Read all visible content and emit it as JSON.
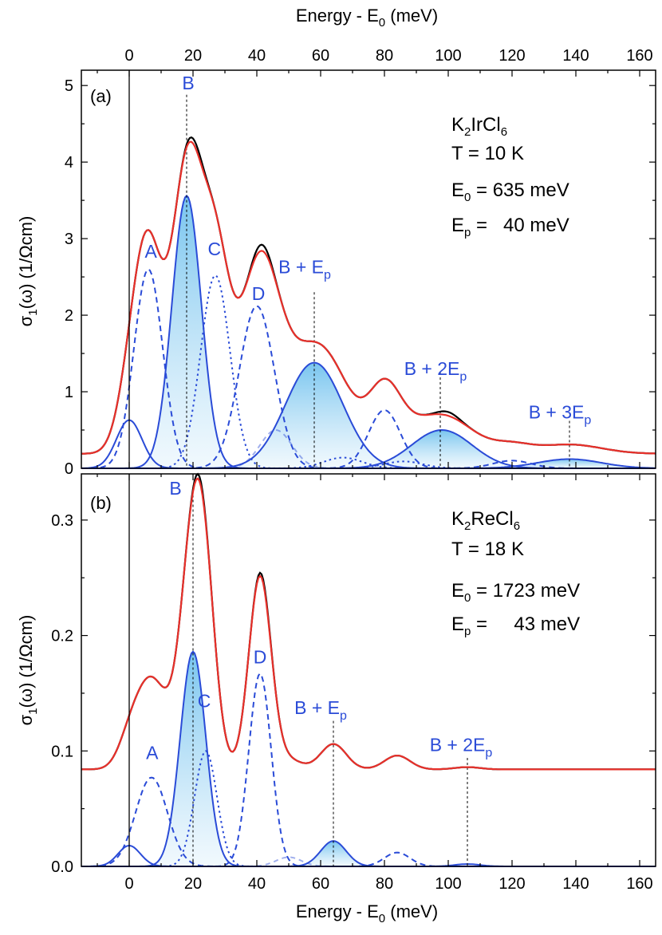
{
  "colors": {
    "data": "#000000",
    "fit": "#e8302a",
    "peak": "#2a4bd7",
    "fill_top": "#4fb3ea",
    "fill_bottom": "#e4f3fc"
  },
  "xaxis": {
    "title_main": "Energy - E",
    "title_sub": "0",
    "title_unit": " (meV)",
    "range": [
      -15,
      165
    ],
    "ticks": [
      0,
      20,
      40,
      60,
      80,
      100,
      120,
      140,
      160
    ],
    "tick_labels": [
      "0",
      "20",
      "40",
      "60",
      "80",
      "100",
      "120",
      "140",
      "160"
    ]
  },
  "ylabel": {
    "main": "σ",
    "sub": "1",
    "rest": "(ω) (1/Ωcm)"
  },
  "chart_data": [
    {
      "type": "line",
      "panel": "(a)",
      "title": "K2IrCl6",
      "info": {
        "formula_parts": [
          "K",
          "2",
          "IrCl",
          "6"
        ],
        "temperature": "T = 10 K",
        "e0_prefix": "E",
        "e0_sub": "0",
        "e0_text": " = 635 meV",
        "ep_prefix": "E",
        "ep_sub": "p",
        "ep_text": " =   40 meV"
      },
      "xlim": [
        -15,
        165
      ],
      "ylim": [
        0,
        5.2
      ],
      "yticks": [
        0,
        1,
        2,
        3,
        4,
        5
      ],
      "ytick_labels": [
        "0",
        "1",
        "2",
        "3",
        "4",
        "5"
      ],
      "baseline": 0.19,
      "peaks": [
        {
          "name": "0-peak",
          "center": 0,
          "amplitude": 0.63,
          "width": 4.0,
          "style": "solid",
          "filled": false
        },
        {
          "name": "A",
          "center": 6,
          "amplitude": 2.6,
          "width": 4.5,
          "style": "dashed",
          "filled": false
        },
        {
          "name": "B",
          "center": 18,
          "amplitude": 3.56,
          "width": 4.6,
          "style": "solid",
          "filled": true
        },
        {
          "name": "C",
          "center": 27,
          "amplitude": 2.52,
          "width": 4.6,
          "style": "dotted",
          "filled": false
        },
        {
          "name": "D",
          "center": 40,
          "amplitude": 2.12,
          "width": 5.5,
          "style": "dashed",
          "filled": false
        },
        {
          "name": "A + Ep",
          "center": 46,
          "amplitude": 0.5,
          "width": 5.0,
          "style": "dashed-light",
          "filled": false
        },
        {
          "name": "B + Ep",
          "center": 58,
          "amplitude": 1.38,
          "width": 9.0,
          "style": "solid",
          "filled": true
        },
        {
          "name": "C + Ep",
          "center": 67,
          "amplitude": 0.14,
          "width": 6.0,
          "style": "dotted",
          "filled": false
        },
        {
          "name": "D + Ep",
          "center": 80,
          "amplitude": 0.76,
          "width": 5.0,
          "style": "dashed",
          "filled": false
        },
        {
          "name": "C + 2Ep",
          "center": 86,
          "amplitude": 0.09,
          "width": 6.0,
          "style": "dotted",
          "filled": false
        },
        {
          "name": "B + 2Ep",
          "center": 98,
          "amplitude": 0.5,
          "width": 9.5,
          "style": "solid",
          "filled": true
        },
        {
          "name": "D + 2Ep",
          "center": 120,
          "amplitude": 0.1,
          "width": 6.0,
          "style": "dashed",
          "filled": false
        },
        {
          "name": "B + 3Ep",
          "center": 138,
          "amplitude": 0.12,
          "width": 10,
          "style": "solid",
          "filled": true
        }
      ],
      "data_wiggles": [
        {
          "center": 21,
          "amplitude": 0.07,
          "width": 2.5
        },
        {
          "center": 41.5,
          "amplitude": 0.08,
          "width": 2.5
        },
        {
          "center": 100,
          "amplitude": 0.05,
          "width": 3.0
        }
      ],
      "markers": [
        {
          "x": 18,
          "y_top": 4.88
        },
        {
          "x": 58,
          "y_top": 2.3
        },
        {
          "x": 97.5,
          "y_top": 1.25
        },
        {
          "x": 138,
          "y_top": 0.62
        }
      ],
      "labels": [
        {
          "text": "B",
          "sub": "",
          "x": 18.5,
          "y": 4.95,
          "anchor": "middle"
        },
        {
          "text": "A",
          "sub": "",
          "x": 6.8,
          "y": 2.75,
          "anchor": "middle"
        },
        {
          "text": "C",
          "sub": "",
          "x": 26.7,
          "y": 2.78,
          "anchor": "middle"
        },
        {
          "text": "D",
          "sub": "",
          "x": 40.5,
          "y": 2.2,
          "anchor": "middle"
        },
        {
          "text": "B + E",
          "sub": "p",
          "x": 55,
          "y": 2.55,
          "anchor": "middle"
        },
        {
          "text": "B + 2E",
          "sub": "p",
          "x": 96,
          "y": 1.22,
          "anchor": "middle"
        },
        {
          "text": "B + 3E",
          "sub": "p",
          "x": 135,
          "y": 0.65,
          "anchor": "middle"
        }
      ]
    },
    {
      "type": "line",
      "panel": "(b)",
      "title": "K2ReCl6",
      "info": {
        "formula_parts": [
          "K",
          "2",
          "ReCl",
          "6"
        ],
        "temperature": "T = 18 K",
        "e0_prefix": "E",
        "e0_sub": "0",
        "e0_text": " = 1723 meV",
        "ep_prefix": "E",
        "ep_sub": "p",
        "ep_text": " =     43 meV"
      },
      "xlim": [
        -15,
        165
      ],
      "ylim": [
        0,
        0.34
      ],
      "yticks": [
        0,
        0.1,
        0.2,
        0.3
      ],
      "ytick_labels": [
        "0.0",
        "0.1",
        "0.2",
        "0.3"
      ],
      "baseline": 0.084,
      "peaks": [
        {
          "name": "0-peak",
          "center": 0,
          "amplitude": 0.018,
          "width": 3.5,
          "style": "solid",
          "filled": false
        },
        {
          "name": "A",
          "center": 7,
          "amplitude": 0.077,
          "width": 5.0,
          "style": "dashed",
          "filled": false
        },
        {
          "name": "B",
          "center": 20,
          "amplitude": 0.186,
          "width": 4.0,
          "style": "solid",
          "filled": true
        },
        {
          "name": "C",
          "center": 24,
          "amplitude": 0.1,
          "width": 3.5,
          "style": "dotted",
          "filled": false
        },
        {
          "name": "D",
          "center": 41,
          "amplitude": 0.167,
          "width": 3.5,
          "style": "dashed",
          "filled": false
        },
        {
          "name": "A + Ep",
          "center": 50,
          "amplitude": 0.008,
          "width": 4.0,
          "style": "dashed-light",
          "filled": false
        },
        {
          "name": "B + Ep",
          "center": 64,
          "amplitude": 0.022,
          "width": 4.0,
          "style": "solid",
          "filled": true
        },
        {
          "name": "D + Ep",
          "center": 84,
          "amplitude": 0.012,
          "width": 4.0,
          "style": "dashed",
          "filled": false
        },
        {
          "name": "B + 2Ep",
          "center": 106,
          "amplitude": 0.002,
          "width": 4.0,
          "style": "solid",
          "filled": false
        }
      ],
      "data_wiggles": [
        {
          "center": 22,
          "amplitude": 0.004,
          "width": 2.0
        },
        {
          "center": 42,
          "amplitude": 0.003,
          "width": 2.0
        }
      ],
      "markers": [
        {
          "x": 20,
          "y_top": 0.33
        },
        {
          "x": 64,
          "y_top": 0.126
        },
        {
          "x": 106,
          "y_top": 0.094
        }
      ],
      "labels": [
        {
          "text": "B",
          "sub": "",
          "x": 14.5,
          "y": 0.322,
          "anchor": "middle"
        },
        {
          "text": "A",
          "sub": "",
          "x": 7.2,
          "y": 0.093,
          "anchor": "middle"
        },
        {
          "text": "C",
          "sub": "",
          "x": 23.5,
          "y": 0.138,
          "anchor": "middle"
        },
        {
          "text": "D",
          "sub": "",
          "x": 41,
          "y": 0.176,
          "anchor": "middle"
        },
        {
          "text": "B + E",
          "sub": "p",
          "x": 60,
          "y": 0.132,
          "anchor": "middle"
        },
        {
          "text": "B + 2E",
          "sub": "p",
          "x": 104,
          "y": 0.1,
          "anchor": "middle"
        }
      ]
    }
  ]
}
